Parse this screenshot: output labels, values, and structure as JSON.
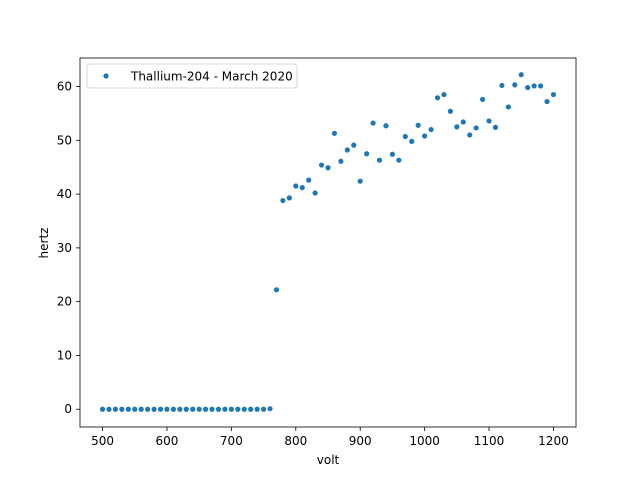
{
  "chart_data": {
    "type": "scatter",
    "title": "",
    "xlabel": "volt",
    "ylabel": "hertz",
    "xlim": [
      465,
      1235
    ],
    "ylim": [
      -3.3,
      65.3
    ],
    "xticks": [
      500,
      600,
      700,
      800,
      900,
      1000,
      1100,
      1200
    ],
    "yticks": [
      0,
      10,
      20,
      30,
      40,
      50,
      60
    ],
    "grid": false,
    "legend_position": "top-left",
    "color": "#1f77b4",
    "series": [
      {
        "name": "Thallium-204 - March 2020",
        "x": [
          500,
          510,
          520,
          530,
          540,
          550,
          560,
          570,
          580,
          590,
          600,
          610,
          620,
          630,
          640,
          650,
          660,
          670,
          680,
          690,
          700,
          710,
          720,
          730,
          740,
          750,
          760,
          770,
          780,
          790,
          800,
          810,
          820,
          830,
          840,
          850,
          860,
          870,
          880,
          890,
          900,
          910,
          920,
          930,
          940,
          950,
          960,
          970,
          980,
          990,
          1000,
          1010,
          1020,
          1030,
          1040,
          1050,
          1060,
          1070,
          1080,
          1090,
          1100,
          1110,
          1120,
          1130,
          1140,
          1150,
          1160,
          1170,
          1180,
          1190,
          1200
        ],
        "y": [
          0,
          0,
          0,
          0,
          0,
          0,
          0,
          0,
          0,
          0,
          0,
          0,
          0,
          0,
          0,
          0,
          0,
          0,
          0,
          0,
          0,
          0,
          0,
          0,
          0,
          0,
          0.1,
          22.2,
          38.8,
          39.3,
          41.5,
          41.2,
          42.6,
          40.2,
          45.4,
          44.9,
          51.3,
          46.1,
          48.2,
          49.1,
          42.4,
          47.5,
          53.2,
          46.3,
          52.7,
          47.4,
          46.3,
          50.7,
          49.8,
          52.8,
          50.8,
          52.0,
          57.9,
          58.5,
          55.4,
          52.5,
          53.4,
          51.0,
          52.3,
          57.6,
          53.6,
          52.4,
          60.2,
          56.2,
          60.3,
          62.2,
          59.8,
          60.1,
          60.1,
          57.2,
          58.5
        ]
      }
    ]
  }
}
